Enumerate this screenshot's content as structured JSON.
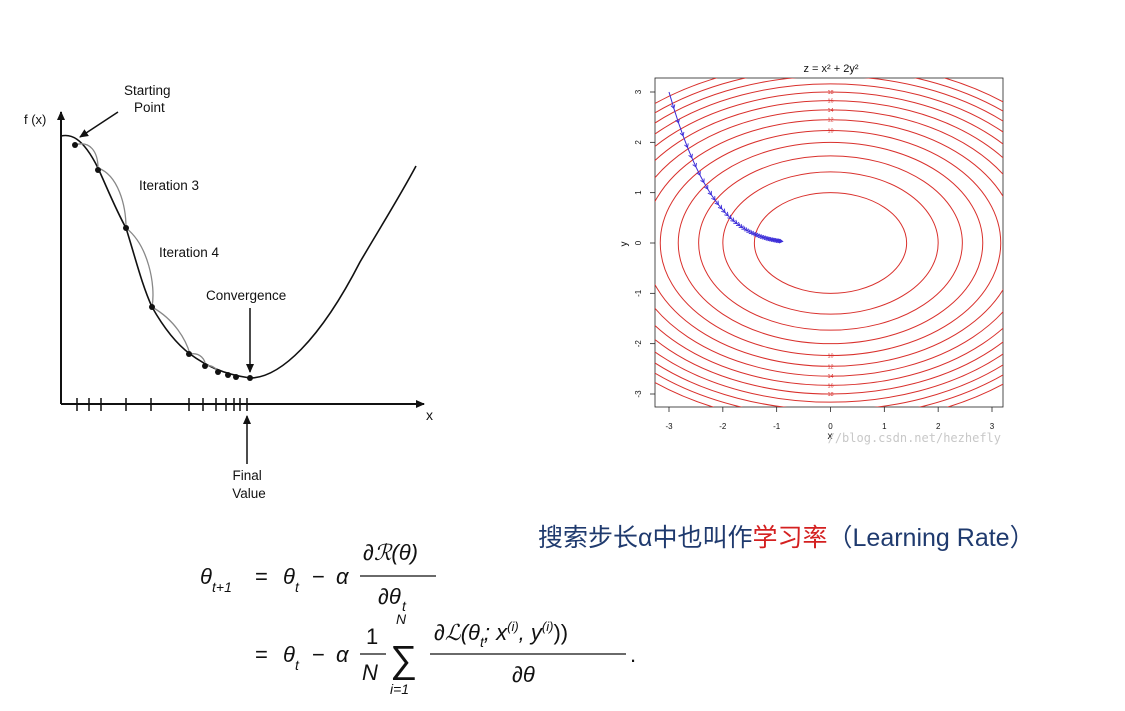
{
  "left_diagram": {
    "y_axis_label": "f (x)",
    "x_axis_label": "x",
    "starting_point_label": [
      "Starting",
      "Point"
    ],
    "iteration3_label": "Iteration 3",
    "iteration4_label": "Iteration 4",
    "convergence_label": "Convergence",
    "final_value_label": [
      "Final",
      "Value"
    ]
  },
  "right_plot": {
    "title": "z = x² + 2y²",
    "xlabel": "x",
    "ylabel": "y",
    "x_ticks": [
      "-3",
      "-2",
      "-1",
      "0",
      "1",
      "2",
      "3"
    ],
    "y_ticks": [
      "-3",
      "-2",
      "-1",
      "0",
      "1",
      "2",
      "3"
    ],
    "contour_labels": [
      "24",
      "22",
      "20",
      "18",
      "16",
      "14",
      "12",
      "10"
    ],
    "watermark": "//blog.csdn.net/hezhefly",
    "contour_color": "#d9302c",
    "path_color": "#3a2bd8"
  },
  "caption": {
    "part1": "搜索步长",
    "alpha": "α",
    "part2": "中也叫作",
    "highlight": "学习率",
    "part3": "（",
    "english": "Learning Rate",
    "part4": "）"
  },
  "equation": {
    "lhs": "θ",
    "lhs_sub": "t+1",
    "line1_rest": "θ",
    "line1_sub": "t",
    "alpha": "α",
    "frac1_num": "∂ℛ(θ)",
    "frac1_den": "∂θ",
    "frac1_den_sub": "t",
    "frac2_num": "1",
    "frac2_den": "N",
    "sum_top": "N",
    "sum_bottom": "i=1",
    "frac3_num": "∂ℒ(θ",
    "frac3_num_rest": "; x",
    "frac3_den": "∂θ"
  }
}
